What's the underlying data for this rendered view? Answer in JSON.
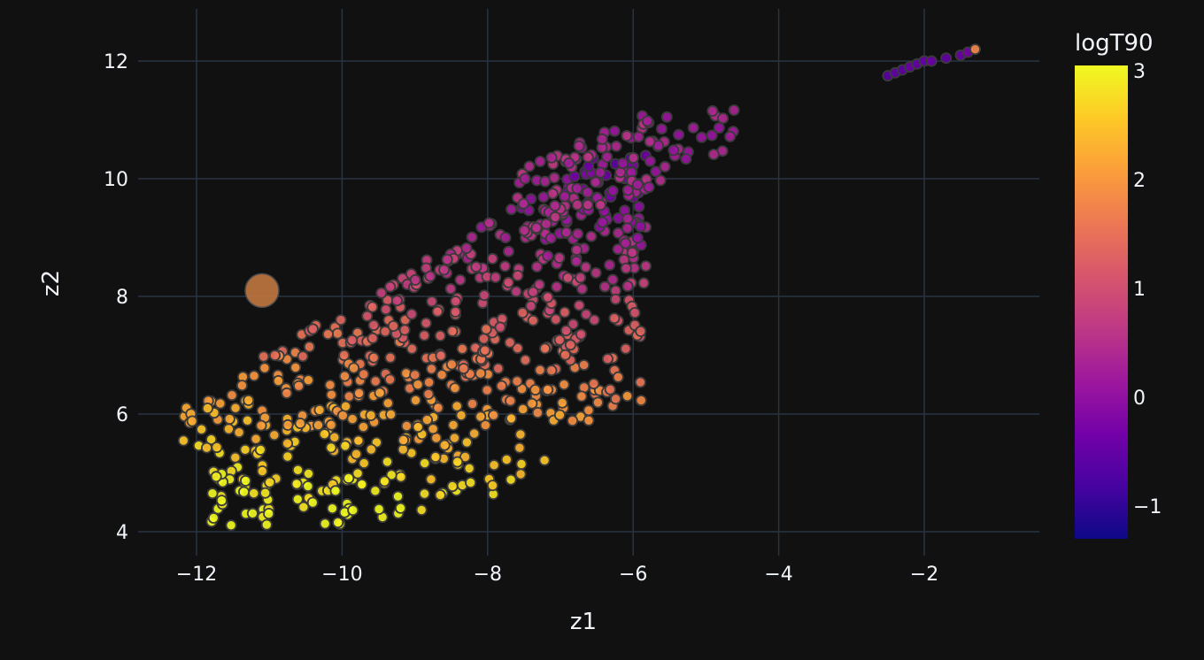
{
  "chart_data": {
    "type": "scatter",
    "xlabel": "z1",
    "ylabel": "z2",
    "x_ticks": [
      -12,
      -10,
      -8,
      -6,
      -4,
      -2
    ],
    "y_ticks": [
      4,
      6,
      8,
      10,
      12
    ],
    "xlim": [
      -12.8,
      -0.4
    ],
    "ylim": [
      3.6,
      12.9
    ],
    "grid": true,
    "colorbar": {
      "title": "logT90",
      "range": [
        -1.3,
        3.05
      ],
      "ticks": [
        -1,
        0,
        1,
        2,
        3
      ],
      "colorscale": [
        "#0d0887",
        "#46039f",
        "#7201a8",
        "#9c179e",
        "#bd3786",
        "#d8576b",
        "#ed7953",
        "#fb9f3a",
        "#fdca26",
        "#f0f921"
      ]
    },
    "highlight": {
      "x": -11.1,
      "y": 8.1,
      "c": 1.9
    },
    "clusters": [
      {
        "description_only": false,
        "points": [
          [
            -2.5,
            11.75,
            -0.6
          ],
          [
            -2.4,
            11.8,
            -0.5
          ],
          [
            -2.3,
            11.85,
            -0.55
          ],
          [
            -2.2,
            11.9,
            -0.4
          ],
          [
            -2.1,
            11.95,
            -0.5
          ],
          [
            -2.0,
            12.0,
            -0.45
          ],
          [
            -1.9,
            12.0,
            -0.4
          ],
          [
            -1.7,
            12.05,
            -0.5
          ],
          [
            -1.5,
            12.1,
            -0.4
          ],
          [
            -1.4,
            12.15,
            -0.3
          ],
          [
            -1.3,
            12.2,
            1.8
          ]
        ]
      }
    ]
  }
}
